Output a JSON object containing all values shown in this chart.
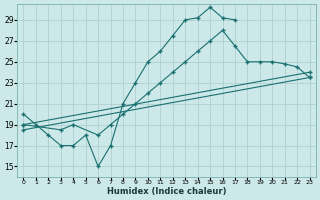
{
  "xlabel": "Humidex (Indice chaleur)",
  "bg_color": "#cce8e8",
  "grid_color": "#b0d0d0",
  "line_color": "#1a7070",
  "xlim": [
    -0.5,
    23.5
  ],
  "ylim": [
    14.0,
    30.5
  ],
  "xticks": [
    0,
    1,
    2,
    3,
    4,
    5,
    6,
    7,
    8,
    9,
    10,
    11,
    12,
    13,
    14,
    15,
    16,
    17,
    18,
    19,
    20,
    21,
    22,
    23
  ],
  "yticks": [
    15,
    17,
    19,
    21,
    23,
    25,
    27,
    29
  ],
  "line1_x": [
    0,
    1,
    2,
    3,
    4,
    5,
    6,
    7,
    8,
    9,
    10,
    11,
    12,
    13,
    14,
    15,
    16,
    17
  ],
  "line1_y": [
    20,
    19,
    18,
    17,
    17,
    18,
    15,
    17,
    21,
    23,
    25,
    26,
    27.5,
    29,
    29.2,
    30.2,
    29.2,
    29.0
  ],
  "line2_x": [
    0,
    3,
    4,
    6,
    7,
    8,
    9,
    10,
    11,
    12,
    13,
    14,
    15,
    16,
    17,
    18,
    19,
    20,
    21,
    22,
    23
  ],
  "line2_y": [
    19,
    18.5,
    19,
    18,
    19,
    20,
    21,
    22,
    23,
    24,
    25,
    26,
    27,
    28,
    26.5,
    25,
    25,
    25,
    24.8,
    24.5,
    23.5
  ],
  "line3_x": [
    0,
    23
  ],
  "line3_y": [
    19.0,
    24.0
  ],
  "line4_x": [
    0,
    23
  ],
  "line4_y": [
    18.5,
    23.5
  ]
}
